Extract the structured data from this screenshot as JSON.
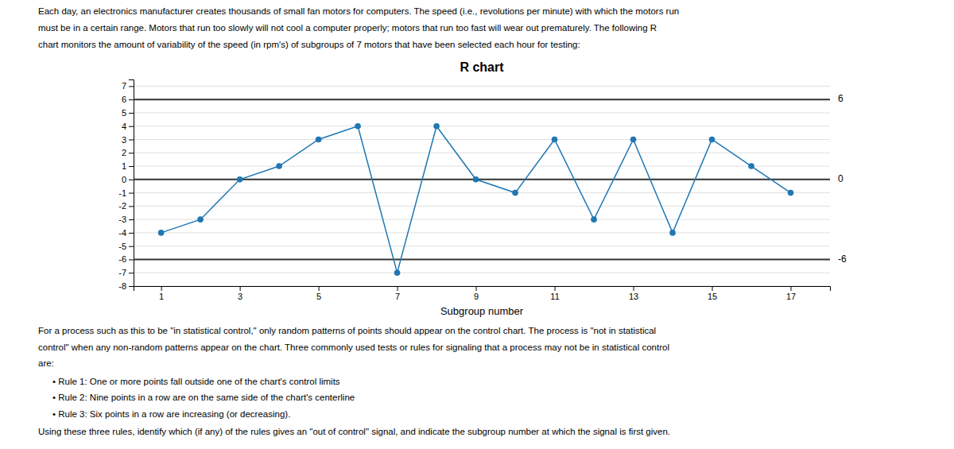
{
  "chart_data": {
    "type": "line",
    "title": "R chart",
    "x_label": "Subgroup number",
    "x": [
      1,
      2,
      3,
      4,
      5,
      6,
      7,
      8,
      9,
      10,
      11,
      12,
      13,
      14,
      15,
      16,
      17
    ],
    "values": [
      -4,
      -3,
      0,
      1,
      3,
      4,
      -7,
      4,
      0,
      -1,
      3,
      -3,
      3,
      -4,
      3,
      1,
      -1
    ],
    "marker": "circle",
    "xlim": [
      0.3,
      18.0
    ],
    "xticks": [
      1,
      3,
      5,
      7,
      9,
      11,
      13,
      15,
      17
    ],
    "ylim": [
      -8,
      7.5
    ],
    "yticks": [
      7,
      6,
      5,
      4,
      3,
      2,
      1,
      0,
      -1,
      -2,
      -3,
      -4,
      -5,
      -6,
      -7,
      -8
    ],
    "grid": true,
    "reference_lines": [
      6,
      0,
      -6
    ],
    "description": [
      "Each day, an electronics manufacturer creates thousands of small fan motors for computers. The speed (i.e., revolutions per minute) with which the motors run",
      "must be in a certain range. Motors that run too slowly will not cool a computer properly; motors that run too fast will wear out prematurely. The following R",
      "chart monitors the amount of variability of the speed (in rpm's) of subgroups of 7 motors that have been selected each hour for testing:"
    ],
    "body": [
      "For a process such as this to be \"in statistical control,\" only random patterns of points should appear on the control chart. The process is \"not in statistical",
      "control\" when any non-random patterns appear on the chart. Three commonly used tests or rules for signaling that a process may not be in statistical control",
      "are:"
    ],
    "rules": [
      "• Rule 1: One or more points fall outside one of the chart's control limits",
      "• Rule 2: Nine points in a row are on the same side of the chart's centerline",
      "• Rule 3: Six points in a row are increasing (or decreasing)."
    ],
    "question": "Using these three rules, identify which (if any) of the rules gives an \"out of control\" signal, and indicate the subgroup number at which the signal is first given."
  }
}
